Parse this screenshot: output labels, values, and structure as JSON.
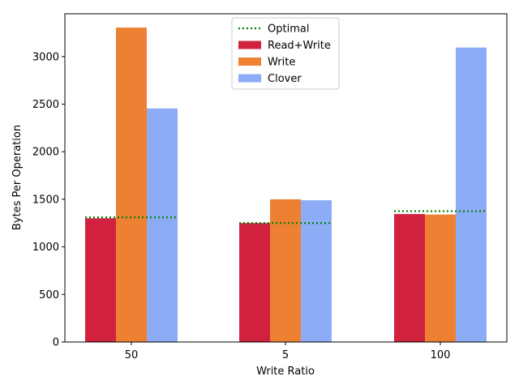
{
  "chart_data": {
    "type": "bar",
    "title": "",
    "xlabel": "Write Ratio",
    "ylabel": "Bytes Per Operation",
    "categories": [
      "50",
      "5",
      "100"
    ],
    "ylim": [
      0,
      3450
    ],
    "yticks": [
      0,
      500,
      1000,
      1500,
      2000,
      2500,
      3000
    ],
    "grid": false,
    "legend_position": "top-center",
    "series": [
      {
        "name": "Read+Write",
        "color": "#d0223e",
        "values": [
          1300,
          1250,
          1345
        ]
      },
      {
        "name": "Write",
        "color": "#ee8033",
        "values": [
          3305,
          1500,
          1340
        ]
      },
      {
        "name": "Clover",
        "color": "#8cadf6",
        "values": [
          2455,
          1490,
          3095
        ]
      }
    ],
    "optimal": {
      "name": "Optimal",
      "color": "#008000",
      "style": "dotted",
      "values": [
        1310,
        1250,
        1375
      ]
    }
  }
}
